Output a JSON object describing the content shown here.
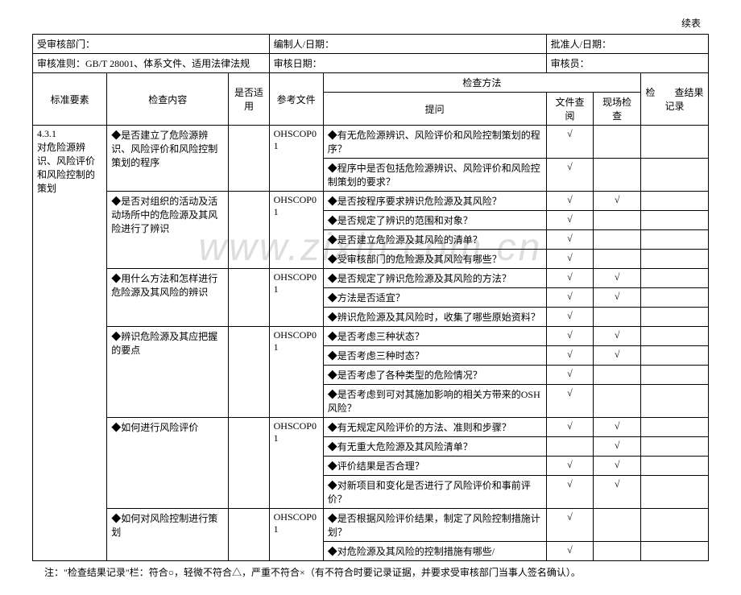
{
  "pageHeader": "续表",
  "headerRow1": {
    "dept": "受审核部门：",
    "preparer": "编制人/日期：",
    "approver": "批准人/日期："
  },
  "headerRow2": {
    "criteria": "审核准则：GB/T 28001、体系文件、适用法律法规",
    "auditDate": "审核日期：",
    "auditor": "审核员："
  },
  "columnHeaders": {
    "element": "标准要素",
    "content": "检查内容",
    "applicable": "是否适用",
    "reference": "参考文件",
    "method": "检查方法",
    "question": "提问",
    "docReview": "文件查阅",
    "siteCheck": "现场检查",
    "result": "检　　查结果记录"
  },
  "element": {
    "number": "4.3.1",
    "title": "对危险源辨识、风险评价和风险控制的策划"
  },
  "groups": [
    {
      "content": "◆是否建立了危险源辨识、风险评价和风险控制策划的程序",
      "ref": "OHSCOP01",
      "questions": [
        {
          "q": "◆有无危险源辨识、风险评价和风险控制策划的程序？",
          "doc": "√",
          "site": ""
        },
        {
          "q": "◆程序中是否包括危险源辨识、风险评价和风险控制策划的要求？",
          "doc": "√",
          "site": ""
        }
      ]
    },
    {
      "content": "◆是否对组织的活动及活动场所中的危险源及其风险进行了辨识",
      "ref": "OHSCOP01",
      "questions": [
        {
          "q": "◆是否按程序要求辨识危险源及其风险？",
          "doc": "√",
          "site": "√"
        },
        {
          "q": "◆是否规定了辨识的范围和对象？",
          "doc": "√",
          "site": ""
        },
        {
          "q": "◆是否建立危险源及其风险的清单？",
          "doc": "√",
          "site": ""
        },
        {
          "q": "◆受审核部门的危险源及其风险有哪些？",
          "doc": "√",
          "site": ""
        }
      ]
    },
    {
      "content": "◆用什么方法和怎样进行危险源及其风险的辨识",
      "ref": "OHSCOP01",
      "questions": [
        {
          "q": "◆是否规定了辨识危险源及其风险的方法？",
          "doc": "√",
          "site": "√"
        },
        {
          "q": "◆方法是否适宜？",
          "doc": "√",
          "site": "√"
        },
        {
          "q": "◆辨识危险源及其风险时，收集了哪些原始资料？",
          "doc": "√",
          "site": ""
        }
      ]
    },
    {
      "content": "◆辨识危险源及其应把握的要点",
      "ref": "OHSCOP01",
      "questions": [
        {
          "q": "◆是否考虑三种状态？",
          "doc": "√",
          "site": "√"
        },
        {
          "q": "◆是否考虑三种时态？",
          "doc": "√",
          "site": "√"
        },
        {
          "q": "◆是否考虑了各种类型的危险情况？",
          "doc": "√",
          "site": ""
        },
        {
          "q": "◆是否考虑到可对其施加影响的相关方带来的OSH 风险？",
          "doc": "√",
          "site": ""
        }
      ]
    },
    {
      "content": "◆如何进行风险评价",
      "ref": "OHSCOP01",
      "questions": [
        {
          "q": "◆有无规定风险评价的方法、准则和步骤？",
          "doc": "√",
          "site": "√"
        },
        {
          "q": "◆有无重大危险源及其风险清单？",
          "doc": "",
          "site": "√"
        },
        {
          "q": "◆评价结果是否合理？",
          "doc": "√",
          "site": "√"
        },
        {
          "q": "◆对新项目和变化是否进行了风险评价和事前评价？",
          "doc": "√",
          "site": "√"
        }
      ]
    },
    {
      "content": "◆如何对风险控制进行策划",
      "ref": "OHSCOP01",
      "questions": [
        {
          "q": "◆是否根据风险评价结果，制定了风险控制措施计划？",
          "doc": "√",
          "site": ""
        },
        {
          "q": "◆对危险源及其风险的控制措施有哪些/",
          "doc": "√",
          "site": ""
        }
      ]
    }
  ],
  "footnote": "注：\"检查结果记录\"栏：符合○，轻微不符合△，严重不符合×（有不符合时要记录证据，并要求受审核部门当事人签名确认）。",
  "watermark": "www.zixin.com.cn",
  "checkMark": "√"
}
